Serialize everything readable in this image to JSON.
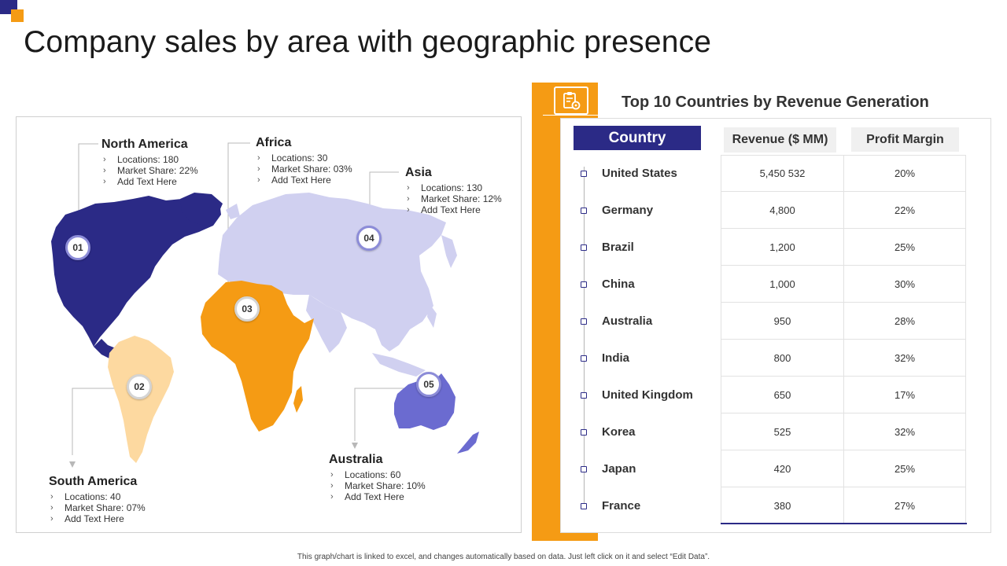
{
  "title": "Company sales by area with geographic presence",
  "regions": [
    {
      "key": "north-america",
      "name": "North America",
      "pin": "01",
      "items": [
        "Locations: 180",
        "Market Share: 22%",
        "Add Text Here"
      ]
    },
    {
      "key": "south-america",
      "name": "South America",
      "pin": "02",
      "items": [
        "Locations: 40",
        "Market Share: 07%",
        "Add Text Here"
      ]
    },
    {
      "key": "africa",
      "name": "Africa",
      "pin": "03",
      "items": [
        "Locations: 30",
        "Market Share: 03%",
        "Add Text Here"
      ]
    },
    {
      "key": "asia",
      "name": "Asia",
      "pin": "04",
      "items": [
        "Locations: 130",
        "Market Share: 12%",
        "Add Text Here"
      ]
    },
    {
      "key": "australia",
      "name": "Australia",
      "pin": "05",
      "items": [
        "Locations: 60",
        "Market Share: 10%",
        "Add Text Here"
      ]
    }
  ],
  "colors": {
    "north_america": "#2b2a86",
    "south_america": "#fdd9a0",
    "africa": "#f59b14",
    "asia": "#d0d0f0",
    "australia": "#6b6bd0",
    "accent_orange": "#f59b14",
    "accent_navy": "#2b2a86"
  },
  "table": {
    "title": "Top 10 Countries by Revenue Generation",
    "icon": "clipboard-gear-icon",
    "headers": {
      "country": "Country",
      "revenue": "Revenue ($ MM)",
      "profit": "Profit Margin"
    },
    "rows": [
      {
        "country": "United States",
        "revenue": "5,450 532",
        "profit": "20%"
      },
      {
        "country": "Germany",
        "revenue": "4,800",
        "profit": "22%"
      },
      {
        "country": "Brazil",
        "revenue": "1,200",
        "profit": "25%"
      },
      {
        "country": "China",
        "revenue": "1,000",
        "profit": "30%"
      },
      {
        "country": "Australia",
        "revenue": "950",
        "profit": "28%"
      },
      {
        "country": "India",
        "revenue": "800",
        "profit": "32%"
      },
      {
        "country": "United Kingdom",
        "revenue": "650",
        "profit": "17%"
      },
      {
        "country": "Korea",
        "revenue": "525",
        "profit": "32%"
      },
      {
        "country": "Japan",
        "revenue": "420",
        "profit": "25%"
      },
      {
        "country": "France",
        "revenue": "380",
        "profit": "27%"
      }
    ]
  },
  "footer": "This graph/chart is linked to excel, and changes automatically based on data. Just left click on it and select “Edit Data”."
}
